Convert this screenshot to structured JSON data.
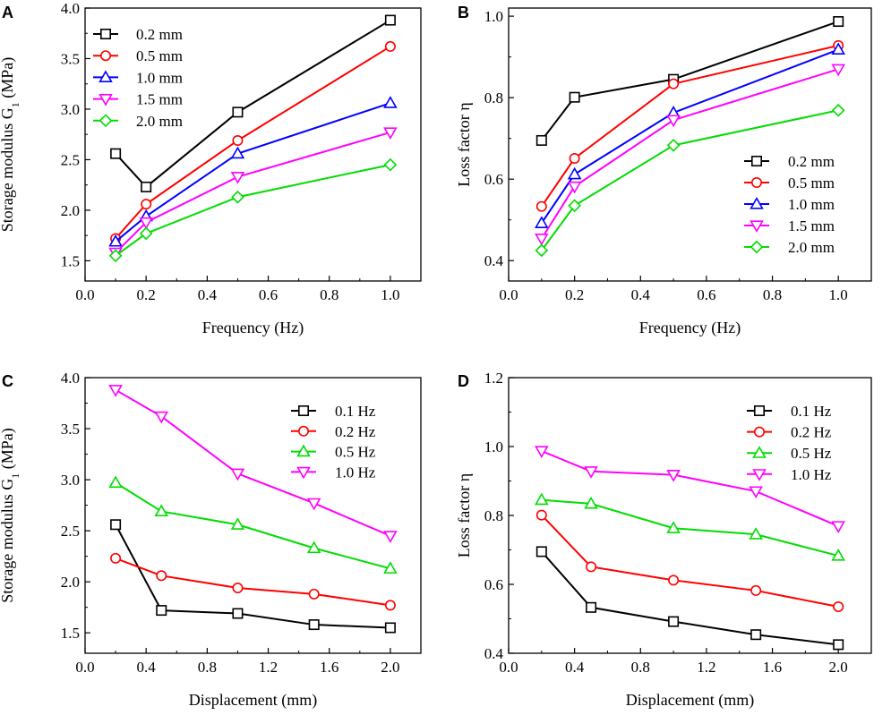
{
  "chart_data": [
    {
      "panel": "A",
      "type": "line",
      "xlabel": "Frequency (Hz)",
      "ylabel": "Storage modulus G",
      "ylabel_sub": "1",
      "ylabel_unit": " (MPa)",
      "xlim": [
        0.0,
        1.1
      ],
      "ylim": [
        1.3,
        4.0
      ],
      "xticks": [
        "0.0",
        "0.2",
        "0.4",
        "0.6",
        "0.8",
        "1.0"
      ],
      "xtick_values": [
        0.0,
        0.2,
        0.4,
        0.6,
        0.8,
        1.0
      ],
      "yticks": [
        "1.5",
        "2.0",
        "2.5",
        "3.0",
        "3.5",
        "4.0"
      ],
      "ytick_values": [
        1.5,
        2.0,
        2.5,
        3.0,
        3.5,
        4.0
      ],
      "legend_position": "top-left",
      "x": [
        0.1,
        0.2,
        0.5,
        1.0
      ],
      "series": [
        {
          "name": "0.2 mm",
          "color": "#000000",
          "marker": "square",
          "values": [
            2.56,
            2.23,
            2.97,
            3.88
          ]
        },
        {
          "name": "0.5 mm",
          "color": "#ff0000",
          "marker": "circle",
          "values": [
            1.72,
            2.06,
            2.69,
            3.62
          ]
        },
        {
          "name": "1.0 mm",
          "color": "#0000ff",
          "marker": "triangle-up",
          "values": [
            1.69,
            1.94,
            2.56,
            3.06
          ]
        },
        {
          "name": "1.5 mm",
          "color": "#ff00ff",
          "marker": "triangle-down",
          "values": [
            1.58,
            1.88,
            2.33,
            2.77
          ]
        },
        {
          "name": "2.0 mm",
          "color": "#00dd00",
          "marker": "diamond",
          "values": [
            1.55,
            1.77,
            2.13,
            2.45
          ]
        }
      ]
    },
    {
      "panel": "B",
      "type": "line",
      "xlabel": "Frequency (Hz)",
      "ylabel": "Loss factor η",
      "ylabel_sub": "",
      "ylabel_unit": "",
      "xlim": [
        0.0,
        1.1
      ],
      "ylim": [
        0.35,
        1.02
      ],
      "xticks": [
        "0.0",
        "0.2",
        "0.4",
        "0.6",
        "0.8",
        "1.0"
      ],
      "xtick_values": [
        0.0,
        0.2,
        0.4,
        0.6,
        0.8,
        1.0
      ],
      "yticks": [
        "0.4",
        "0.6",
        "0.8",
        "1.0"
      ],
      "ytick_values": [
        0.4,
        0.6,
        0.8,
        1.0
      ],
      "legend_position": "bottom-right",
      "x": [
        0.1,
        0.2,
        0.5,
        1.0
      ],
      "series": [
        {
          "name": "0.2 mm",
          "color": "#000000",
          "marker": "square",
          "values": [
            0.695,
            0.801,
            0.845,
            0.987
          ]
        },
        {
          "name": "0.5 mm",
          "color": "#ff0000",
          "marker": "circle",
          "values": [
            0.533,
            0.651,
            0.834,
            0.928
          ]
        },
        {
          "name": "1.0 mm",
          "color": "#0000ff",
          "marker": "triangle-up",
          "values": [
            0.492,
            0.612,
            0.763,
            0.918
          ]
        },
        {
          "name": "1.5 mm",
          "color": "#ff00ff",
          "marker": "triangle-down",
          "values": [
            0.454,
            0.582,
            0.745,
            0.87
          ]
        },
        {
          "name": "2.0 mm",
          "color": "#00dd00",
          "marker": "diamond",
          "values": [
            0.425,
            0.535,
            0.683,
            0.769
          ]
        }
      ]
    },
    {
      "panel": "C",
      "type": "line",
      "xlabel": "Displacement (mm)",
      "ylabel": "Storage modulus G",
      "ylabel_sub": "1",
      "ylabel_unit": " (MPa)",
      "xlim": [
        0.0,
        2.2
      ],
      "ylim": [
        1.3,
        4.0
      ],
      "xticks": [
        "0.0",
        "0.4",
        "0.8",
        "1.2",
        "1.6",
        "2.0"
      ],
      "xtick_values": [
        0.0,
        0.4,
        0.8,
        1.2,
        1.6,
        2.0
      ],
      "yticks": [
        "1.5",
        "2.0",
        "2.5",
        "3.0",
        "3.5",
        "4.0"
      ],
      "ytick_values": [
        1.5,
        2.0,
        2.5,
        3.0,
        3.5,
        4.0
      ],
      "legend_position": "top-right",
      "x": [
        0.2,
        0.5,
        1.0,
        1.5,
        2.0
      ],
      "series": [
        {
          "name": "0.1 Hz",
          "color": "#000000",
          "marker": "square",
          "values": [
            2.56,
            1.72,
            1.69,
            1.58,
            1.55
          ]
        },
        {
          "name": "0.2 Hz",
          "color": "#ff0000",
          "marker": "circle",
          "values": [
            2.23,
            2.06,
            1.94,
            1.88,
            1.77
          ]
        },
        {
          "name": "0.5 Hz",
          "color": "#00dd00",
          "marker": "triangle-up",
          "values": [
            2.97,
            2.69,
            2.56,
            2.33,
            2.13
          ]
        },
        {
          "name": "1.0 Hz",
          "color": "#ff00ff",
          "marker": "triangle-down",
          "values": [
            3.88,
            3.62,
            3.06,
            2.77,
            2.45
          ]
        }
      ]
    },
    {
      "panel": "D",
      "type": "line",
      "xlabel": "Displacement (mm)",
      "ylabel": "Loss factor η",
      "ylabel_sub": "",
      "ylabel_unit": "",
      "xlim": [
        0.0,
        2.2
      ],
      "ylim": [
        0.4,
        1.2
      ],
      "xticks": [
        "0.0",
        "0.4",
        "0.8",
        "1.2",
        "1.6",
        "2.0"
      ],
      "xtick_values": [
        0.0,
        0.4,
        0.8,
        1.2,
        1.6,
        2.0
      ],
      "yticks": [
        "0.4",
        "0.6",
        "0.8",
        "1.0",
        "1.2"
      ],
      "ytick_values": [
        0.4,
        0.6,
        0.8,
        1.0,
        1.2
      ],
      "legend_position": "top-right",
      "x": [
        0.2,
        0.5,
        1.0,
        1.5,
        2.0
      ],
      "series": [
        {
          "name": "0.1 Hz",
          "color": "#000000",
          "marker": "square",
          "values": [
            0.695,
            0.533,
            0.492,
            0.454,
            0.425
          ]
        },
        {
          "name": "0.2 Hz",
          "color": "#ff0000",
          "marker": "circle",
          "values": [
            0.801,
            0.651,
            0.612,
            0.582,
            0.535
          ]
        },
        {
          "name": "0.5 Hz",
          "color": "#00dd00",
          "marker": "triangle-up",
          "values": [
            0.845,
            0.834,
            0.763,
            0.745,
            0.683
          ]
        },
        {
          "name": "1.0 Hz",
          "color": "#ff00ff",
          "marker": "triangle-down",
          "values": [
            0.987,
            0.928,
            0.918,
            0.87,
            0.769
          ]
        }
      ]
    }
  ]
}
